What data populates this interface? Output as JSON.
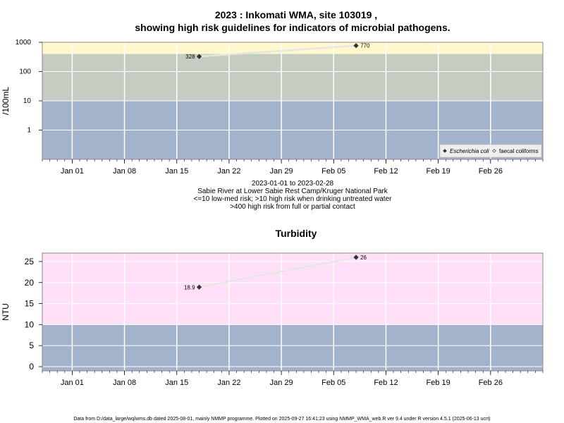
{
  "title": {
    "line1": "2023 : Inkomati WMA, site 103019 ,",
    "line2": "showing high risk guidelines for indicators of microbial pathogens."
  },
  "caption": {
    "line1": "2023-01-01 to 2023-02-28",
    "line2": "Sabie River at Lower Sabie Rest Camp/Kruger National Park",
    "line3": "<=10 low-med risk; >10 high risk when drinking untreated water",
    "line4": ">400 high risk from full or partial contact"
  },
  "footer": "Data from D:/data_large/wq/wms.db dated 2025-08-01, mainly NMMP programme. Plotted on 2025-09-27 16:41:23 using NMMP_WMA_web.R ver 9.4 under R version 4.5.1 (2025-06-13 ucrt)",
  "colors": {
    "band_low": "#a3b3cc",
    "band_mid": "#c5cdc2",
    "band_high_micro": "#fff8cc",
    "band_high_turb": "#ffe0f8",
    "trend_line": "#e6e6e6",
    "point": "#333333",
    "grid": "#ffffff"
  },
  "chart_data": [
    {
      "type": "scatter",
      "title": "",
      "ylabel": "/100mL",
      "y_scale": "log",
      "ylim": [
        0.1,
        1000
      ],
      "xlim": [
        "2022-12-28",
        "2023-03-05"
      ],
      "x_ticks": [
        "Jan 01",
        "Jan 08",
        "Jan 15",
        "Jan 22",
        "Jan 29",
        "Feb 05",
        "Feb 12",
        "Feb 19",
        "Feb 26"
      ],
      "x_tick_dates": [
        "2023-01-01",
        "2023-01-08",
        "2023-01-15",
        "2023-01-22",
        "2023-01-29",
        "2023-02-05",
        "2023-02-12",
        "2023-02-19",
        "2023-02-26"
      ],
      "y_ticks": [
        "1",
        "10",
        "100",
        "1000"
      ],
      "y_tick_values": [
        1,
        10,
        100,
        1000
      ],
      "grid": true,
      "bands": [
        {
          "from": 0.1,
          "to": 10,
          "color": "band_low"
        },
        {
          "from": 10,
          "to": 400,
          "color": "band_mid"
        },
        {
          "from": 400,
          "to": 1000,
          "color": "band_high_micro"
        }
      ],
      "legend": {
        "position": "bottom-right",
        "entries": [
          {
            "label": "Escherichia coli",
            "symbol": "filled-diamond",
            "italic": true
          },
          {
            "label": "faecal coliforms",
            "symbol": "open-diamond",
            "italic": false
          }
        ]
      },
      "series": [
        {
          "name": "Escherichia coli",
          "points": [
            {
              "x": "2023-01-18",
              "y": 328,
              "label": "328",
              "label_side": "left"
            },
            {
              "x": "2023-02-08",
              "y": 770,
              "label": "770",
              "label_side": "right"
            }
          ]
        }
      ]
    },
    {
      "type": "scatter",
      "title": "Turbidity",
      "ylabel": "NTU",
      "y_scale": "linear",
      "ylim": [
        -1,
        27
      ],
      "xlim": [
        "2022-12-28",
        "2023-03-05"
      ],
      "x_ticks": [
        "Jan 01",
        "Jan 08",
        "Jan 15",
        "Jan 22",
        "Jan 29",
        "Feb 05",
        "Feb 12",
        "Feb 19",
        "Feb 26"
      ],
      "x_tick_dates": [
        "2023-01-01",
        "2023-01-08",
        "2023-01-15",
        "2023-01-22",
        "2023-01-29",
        "2023-02-05",
        "2023-02-12",
        "2023-02-19",
        "2023-02-26"
      ],
      "y_ticks": [
        "0",
        "5",
        "10",
        "15",
        "20",
        "25"
      ],
      "y_tick_values": [
        0,
        5,
        10,
        15,
        20,
        25
      ],
      "grid": true,
      "bands": [
        {
          "from": -1,
          "to": 10,
          "color": "band_low"
        },
        {
          "from": 10,
          "to": 27,
          "color": "band_high_turb"
        }
      ],
      "series": [
        {
          "name": "",
          "points": [
            {
              "x": "2023-01-18",
              "y": 18.9,
              "label": "18.9",
              "label_side": "left"
            },
            {
              "x": "2023-02-08",
              "y": 26,
              "label": "26",
              "label_side": "right"
            }
          ]
        }
      ]
    }
  ]
}
